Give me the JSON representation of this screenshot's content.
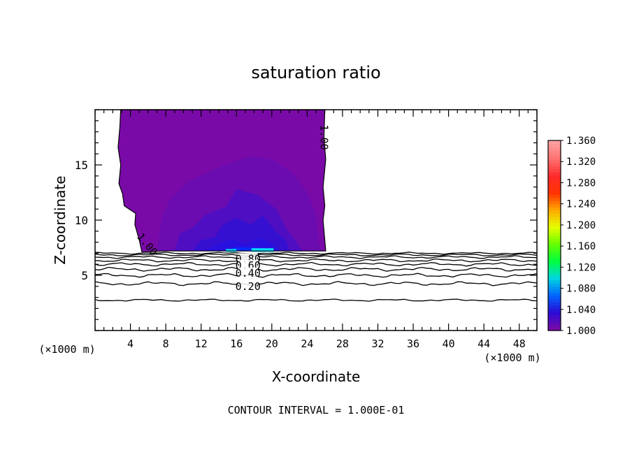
{
  "chart_data": {
    "type": "heatmap",
    "title": "saturation ratio",
    "xlabel": "X-coordinate",
    "ylabel": "Z-coordinate",
    "x_unit_label": "(×1000 m)",
    "y_unit_label": "(×1000 m)",
    "xlim": [
      0,
      50
    ],
    "ylim": [
      0,
      20
    ],
    "x_ticks": [
      "4",
      "8",
      "12",
      "16",
      "20",
      "24",
      "28",
      "32",
      "36",
      "40",
      "44",
      "48"
    ],
    "y_ticks": [
      "5",
      "10",
      "15"
    ],
    "footer": "CONTOUR INTERVAL = 1.000E-01",
    "colorbar": {
      "levels": [
        "1.000",
        "1.040",
        "1.080",
        "1.120",
        "1.160",
        "1.200",
        "1.240",
        "1.280",
        "1.320",
        "1.360"
      ],
      "colors": [
        "#7a0aa8",
        "#2b0bd6",
        "#0066ff",
        "#00d6e0",
        "#00ff40",
        "#66ff00",
        "#e6ff00",
        "#ffaa00",
        "#ff3300",
        "#ff2a2a",
        "#ff7070",
        "#ffa0a0"
      ]
    },
    "contour_labels": [
      {
        "text": "1.00",
        "x": 25.9,
        "z": 17.5
      },
      {
        "text": "1.00",
        "x": 5.9,
        "z": 7.8
      },
      {
        "text": "0.80",
        "x": 17.3,
        "z": 6.5
      },
      {
        "text": "0.60",
        "x": 17.3,
        "z": 5.9
      },
      {
        "text": "0.40",
        "x": 17.3,
        "z": 5.2
      },
      {
        "text": "0.20",
        "x": 17.3,
        "z": 4.0
      }
    ],
    "region_colors": {
      "saturated_base": "#7a0aa8",
      "level_2": "#6b0cb0",
      "level_3": "#4f0ec2",
      "level_4": "#3510d0",
      "level_5": "#2a10de",
      "level_6": "#0a28ff",
      "highlight": "#00e0ff"
    }
  }
}
